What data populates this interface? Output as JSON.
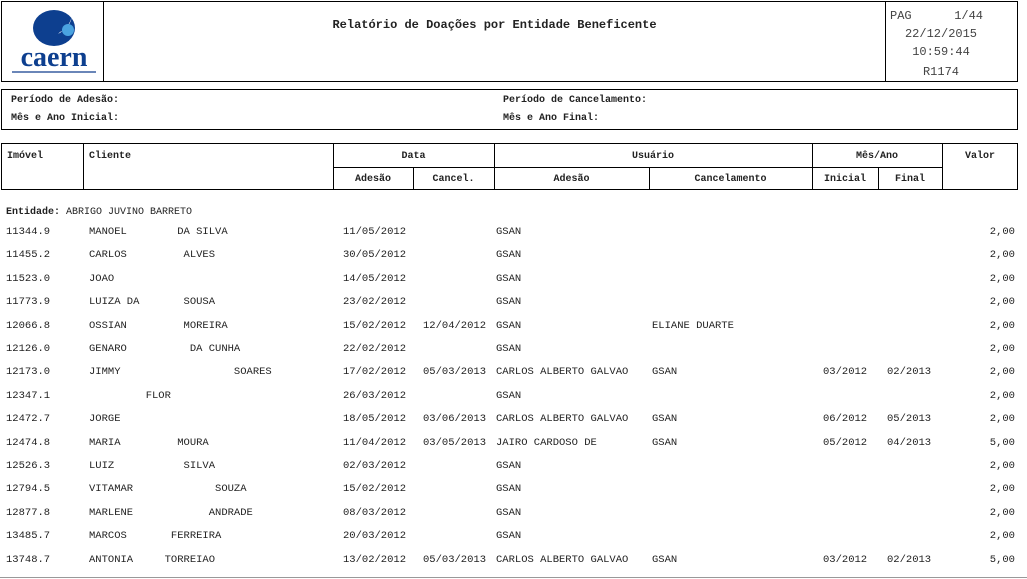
{
  "header": {
    "logo_text": "caern",
    "title": "Relatório de Doações por Entidade Beneficente",
    "page_label": "PAG",
    "page": "1/44",
    "date": "22/12/2015",
    "time": "10:59:44",
    "report_code": "R1174",
    "brand_color": "#0d3f8f"
  },
  "filters": {
    "periodo_adesao": "Período de Adesão:",
    "periodo_cancelamento": "Período de Cancelamento:",
    "mes_ano_inicial": "Mês e Ano Inicial:",
    "mes_ano_final": "Mês e Ano Final:"
  },
  "columns": {
    "imovel": "Imóvel",
    "cliente": "Cliente",
    "data": "Data",
    "data_adesao": "Adesão",
    "data_cancel": "Cancel.",
    "usuario": "Usuário",
    "usuario_adesao": "Adesão",
    "usuario_cancel": "Cancelamento",
    "mes_ano": "Mês/Ano",
    "inicial": "Inicial",
    "final": "Final",
    "valor": "Valor"
  },
  "entity": {
    "label": "Entidade:",
    "name": "ABRIGO JUVINO BARRETO"
  },
  "rows": [
    {
      "imovel": "11344.9",
      "cliente": "MANOEL        DA SILVA",
      "adesao": "11/05/2012",
      "cancel": "",
      "usr_adesao": "GSAN",
      "usr_cancel": "",
      "inicial": "",
      "final": "",
      "valor": "2,00"
    },
    {
      "imovel": "11455.2",
      "cliente": "CARLOS         ALVES",
      "adesao": "30/05/2012",
      "cancel": "",
      "usr_adesao": "GSAN",
      "usr_cancel": "",
      "inicial": "",
      "final": "",
      "valor": "2,00"
    },
    {
      "imovel": "11523.0",
      "cliente": "JOAO",
      "adesao": "14/05/2012",
      "cancel": "",
      "usr_adesao": "GSAN",
      "usr_cancel": "",
      "inicial": "",
      "final": "",
      "valor": "2,00"
    },
    {
      "imovel": "11773.9",
      "cliente": "LUIZA DA       SOUSA",
      "adesao": "23/02/2012",
      "cancel": "",
      "usr_adesao": "GSAN",
      "usr_cancel": "",
      "inicial": "",
      "final": "",
      "valor": "2,00"
    },
    {
      "imovel": "12066.8",
      "cliente": "OSSIAN         MOREIRA",
      "adesao": "15/02/2012",
      "cancel": "12/04/2012",
      "usr_adesao": "GSAN",
      "usr_cancel": "ELIANE DUARTE",
      "inicial": "",
      "final": "",
      "valor": "2,00"
    },
    {
      "imovel": "12126.0",
      "cliente": "GENARO          DA CUNHA",
      "adesao": "22/02/2012",
      "cancel": "",
      "usr_adesao": "GSAN",
      "usr_cancel": "",
      "inicial": "",
      "final": "",
      "valor": "2,00"
    },
    {
      "imovel": "12173.0",
      "cliente": "JIMMY                  SOARES",
      "adesao": "17/02/2012",
      "cancel": "05/03/2013",
      "usr_adesao": "CARLOS ALBERTO GALVAO",
      "usr_cancel": "GSAN",
      "inicial": "03/2012",
      "final": "02/2013",
      "valor": "2,00"
    },
    {
      "imovel": "12347.1",
      "cliente": "         FLOR",
      "adesao": "26/03/2012",
      "cancel": "",
      "usr_adesao": "GSAN",
      "usr_cancel": "",
      "inicial": "",
      "final": "",
      "valor": "2,00"
    },
    {
      "imovel": "12472.7",
      "cliente": "JORGE",
      "adesao": "18/05/2012",
      "cancel": "03/06/2013",
      "usr_adesao": "CARLOS ALBERTO GALVAO",
      "usr_cancel": "GSAN",
      "inicial": "06/2012",
      "final": "05/2013",
      "valor": "2,00"
    },
    {
      "imovel": "12474.8",
      "cliente": "MARIA         MOURA",
      "adesao": "11/04/2012",
      "cancel": "03/05/2013",
      "usr_adesao": "JAIRO CARDOSO DE",
      "usr_cancel": "GSAN",
      "inicial": "05/2012",
      "final": "04/2013",
      "valor": "5,00"
    },
    {
      "imovel": "12526.3",
      "cliente": "LUIZ           SILVA",
      "adesao": "02/03/2012",
      "cancel": "",
      "usr_adesao": "GSAN",
      "usr_cancel": "",
      "inicial": "",
      "final": "",
      "valor": "2,00"
    },
    {
      "imovel": "12794.5",
      "cliente": "VITAMAR             SOUZA",
      "adesao": "15/02/2012",
      "cancel": "",
      "usr_adesao": "GSAN",
      "usr_cancel": "",
      "inicial": "",
      "final": "",
      "valor": "2,00"
    },
    {
      "imovel": "12877.8",
      "cliente": "MARLENE            ANDRADE",
      "adesao": "08/03/2012",
      "cancel": "",
      "usr_adesao": "GSAN",
      "usr_cancel": "",
      "inicial": "",
      "final": "",
      "valor": "2,00"
    },
    {
      "imovel": "13485.7",
      "cliente": "MARCOS       FERREIRA",
      "adesao": "20/03/2012",
      "cancel": "",
      "usr_adesao": "GSAN",
      "usr_cancel": "",
      "inicial": "",
      "final": "",
      "valor": "2,00"
    },
    {
      "imovel": "13748.7",
      "cliente": "ANTONIA     TORREIAO",
      "adesao": "13/02/2012",
      "cancel": "05/03/2013",
      "usr_adesao": "CARLOS ALBERTO GALVAO",
      "usr_cancel": "GSAN",
      "inicial": "03/2012",
      "final": "02/2013",
      "valor": "5,00"
    }
  ]
}
